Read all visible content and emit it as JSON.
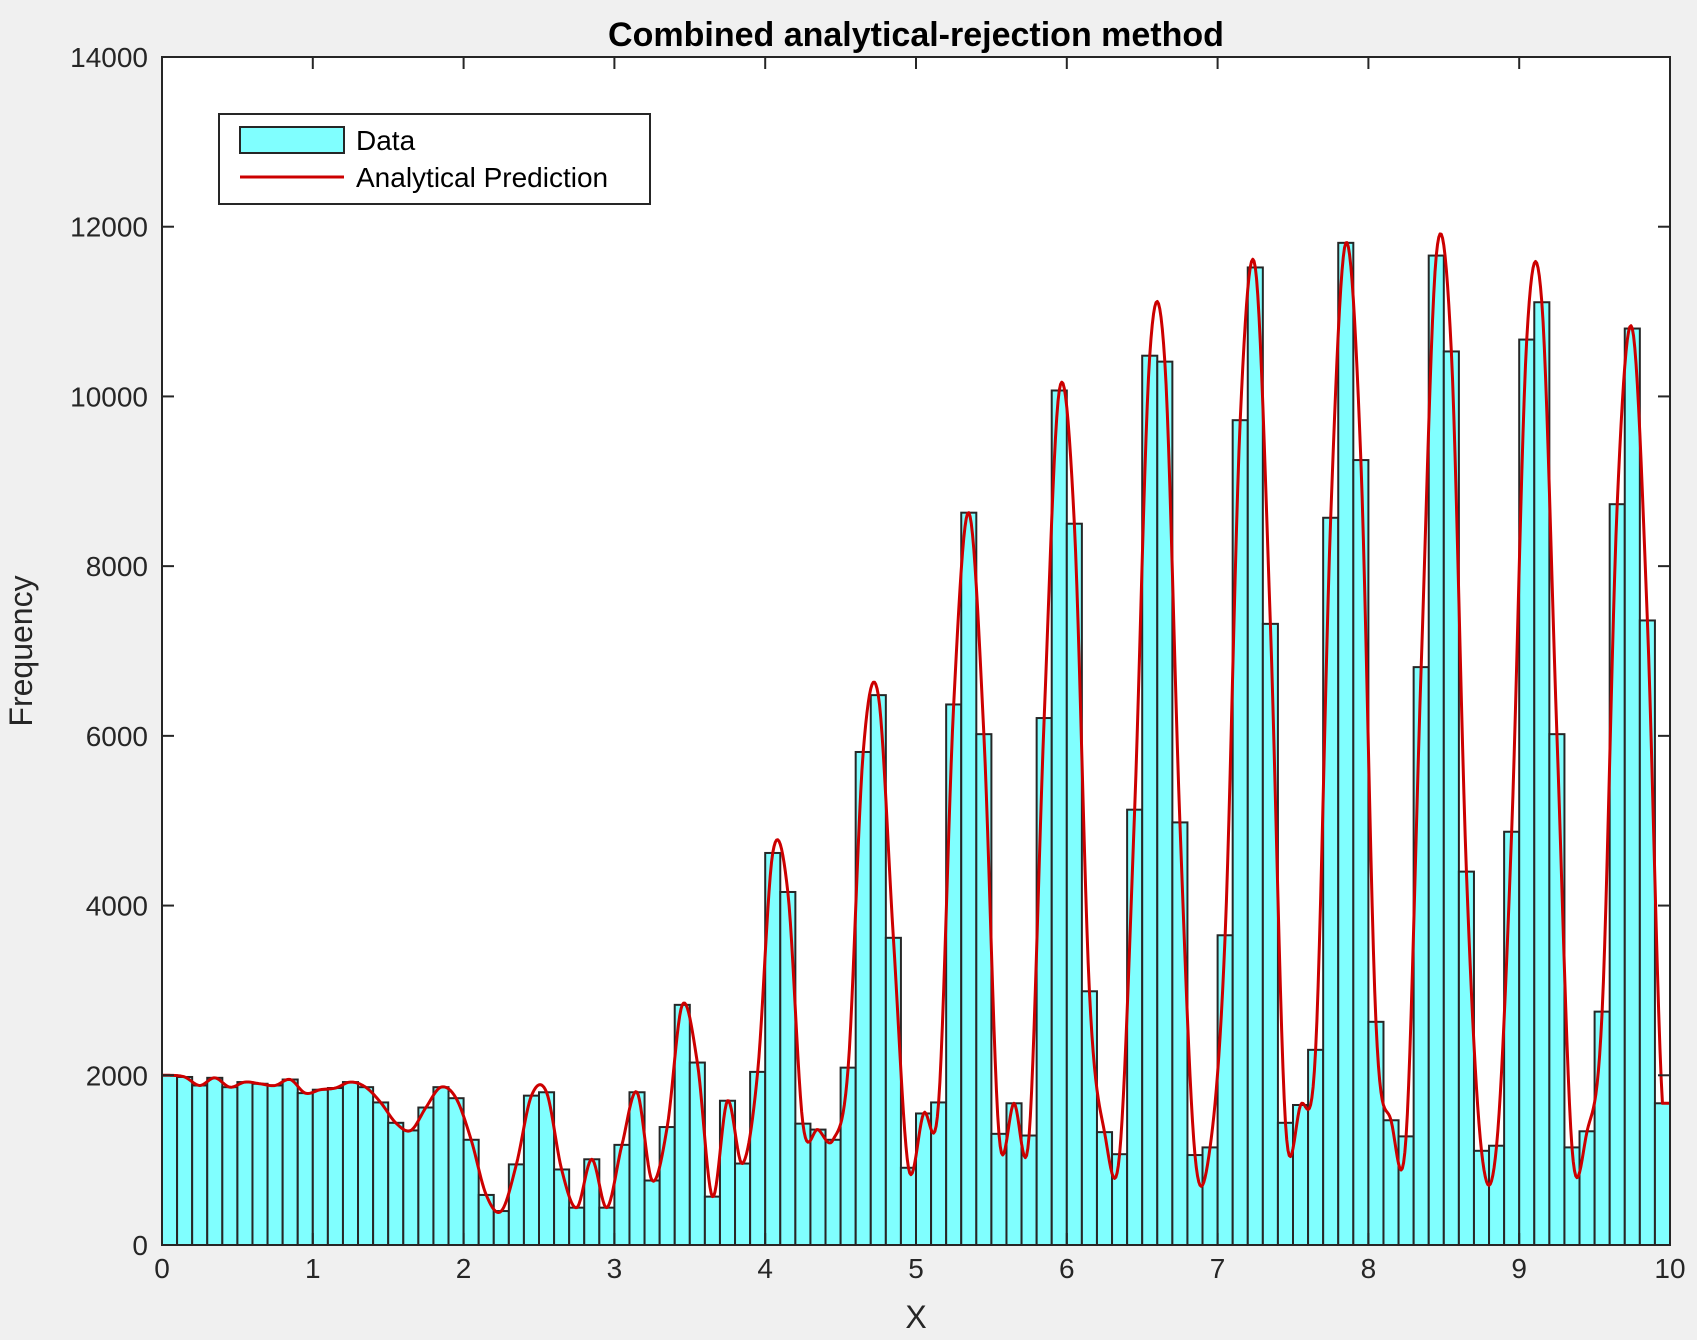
{
  "chart_data": {
    "type": "bar",
    "title": "Combined analytical-rejection method",
    "xlabel": "X",
    "ylabel": "Frequency",
    "xlim": [
      0,
      10
    ],
    "ylim": [
      0,
      14000
    ],
    "xticks": [
      "0",
      "1",
      "2",
      "3",
      "4",
      "5",
      "6",
      "7",
      "8",
      "9",
      "10"
    ],
    "yticks": [
      "0",
      "2000",
      "4000",
      "6000",
      "8000",
      "10000",
      "12000",
      "14000"
    ],
    "grid": false,
    "legend_position": "top-left",
    "bin_edges_range": [
      0,
      10
    ],
    "bin_count": 100,
    "series": [
      {
        "name": "Data",
        "kind": "histogram",
        "color": "#80ffff",
        "edge_color": "#262626",
        "values": [
          2000,
          1980,
          1880,
          1970,
          1860,
          1920,
          1900,
          1880,
          1950,
          1790,
          1830,
          1850,
          1920,
          1860,
          1680,
          1440,
          1350,
          1620,
          1860,
          1730,
          1240,
          590,
          400,
          950,
          1760,
          1800,
          890,
          440,
          1010,
          440,
          1180,
          1800,
          760,
          1390,
          2830,
          2150,
          570,
          1700,
          960,
          2040,
          4620,
          4160,
          1430,
          1360,
          1240,
          2090,
          5810,
          6480,
          3620,
          910,
          1550,
          1680,
          6370,
          8630,
          6020,
          1310,
          1670,
          1290,
          6210,
          10070,
          8500,
          2990,
          1330,
          1070,
          5130,
          10480,
          10410,
          4980,
          1060,
          1150,
          3650,
          9720,
          11520,
          7320,
          1440,
          1650,
          2300,
          8570,
          11810,
          9250,
          2630,
          1470,
          1280,
          6810,
          11660,
          10530,
          4400,
          1110,
          1170,
          4870,
          10670,
          11110,
          6020,
          1150,
          1340,
          2750,
          8730,
          10800,
          7360,
          1670
        ]
      },
      {
        "name": "Analytical Prediction",
        "kind": "line",
        "color": "#cc0000"
      }
    ]
  }
}
